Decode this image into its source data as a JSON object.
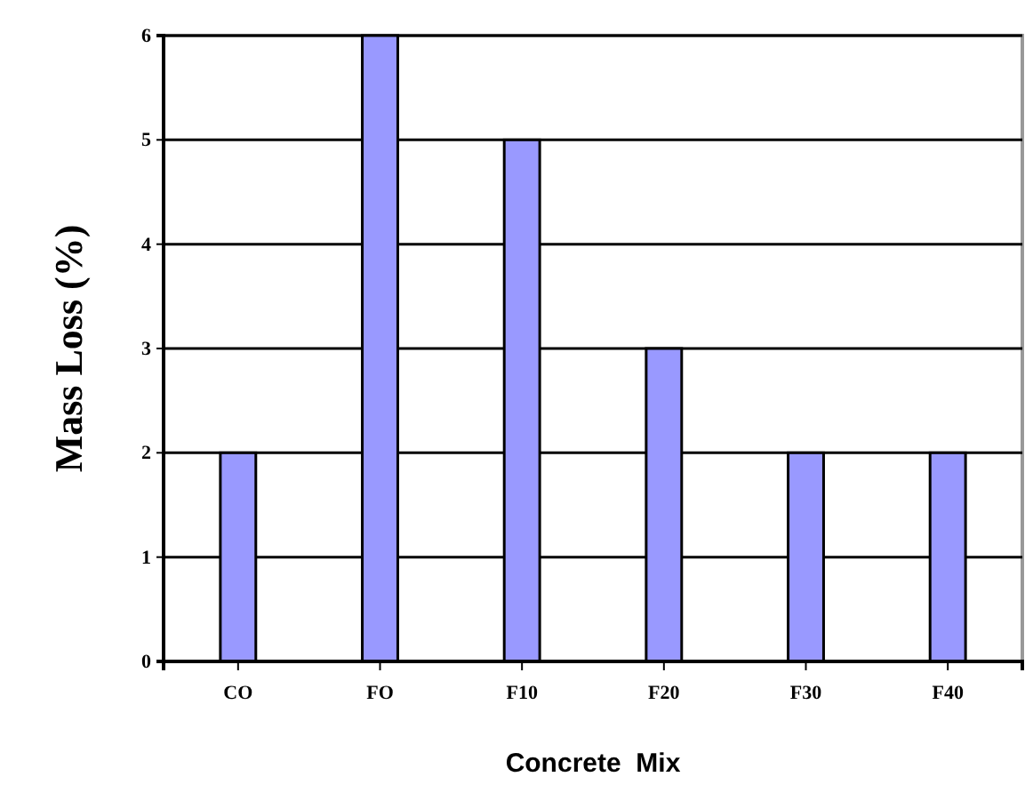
{
  "chart_data": {
    "type": "bar",
    "xlabel": "Concrete  Mix",
    "ylabel": "Mass Loss (%)",
    "categories": [
      "CO",
      "FO",
      "F10",
      "F20",
      "F30",
      "F40"
    ],
    "values": [
      2,
      6,
      5,
      3,
      2,
      2
    ],
    "color": "#9999ff",
    "ylim": [
      0,
      6
    ],
    "yticks": [
      0,
      1,
      2,
      3,
      4,
      5,
      6
    ],
    "grid": "y"
  }
}
